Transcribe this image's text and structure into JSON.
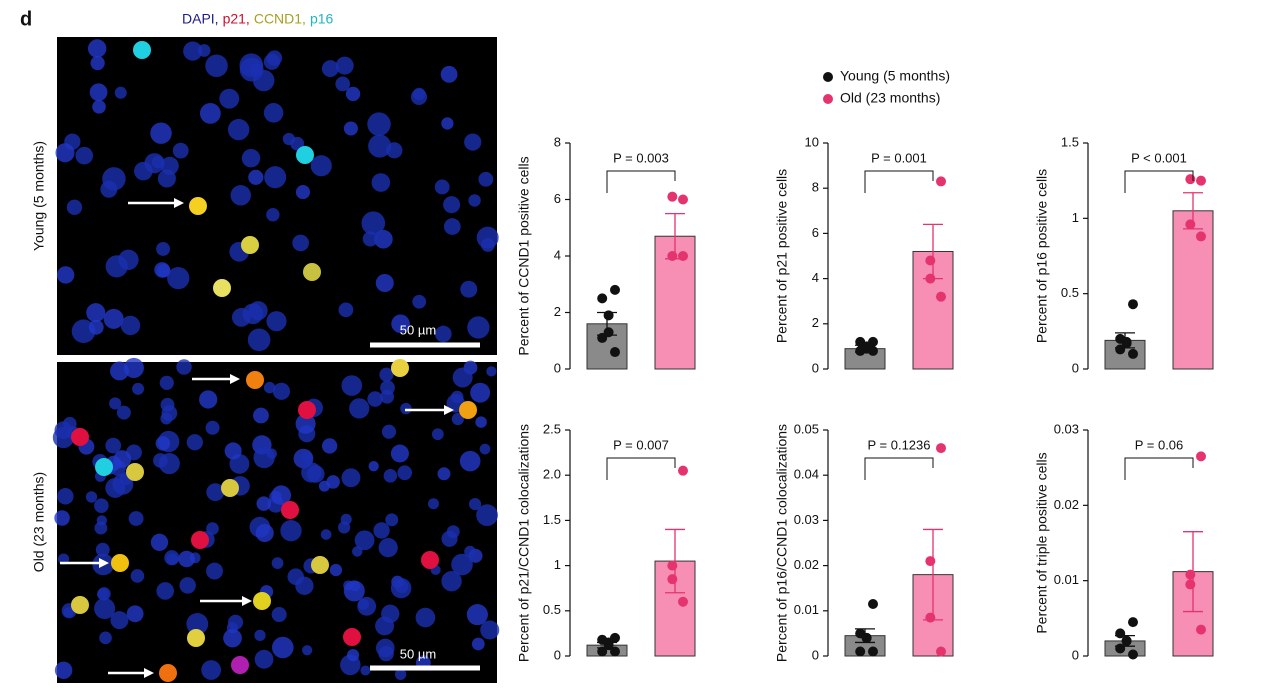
{
  "panel_label": "d",
  "stain_legend": [
    {
      "text": "DAPI,",
      "color": "#1c1c8a"
    },
    {
      "text": "p21,",
      "color": "#c8102e"
    },
    {
      "text": "CCND1,",
      "color": "#a8a020"
    },
    {
      "text": "p16",
      "color": "#1fb5c8"
    }
  ],
  "images": [
    {
      "label": "Young (5 months)",
      "scale_bar": "50 µm"
    },
    {
      "label": "Old (23 months)",
      "scale_bar": "50 µm"
    }
  ],
  "legend": {
    "series": [
      {
        "name": "Young (5 months)",
        "color": "#111111",
        "bar_color": "#8a8a8a"
      },
      {
        "name": "Old (23 months)",
        "color": "#e5336e",
        "bar_color": "#f78fb5"
      }
    ]
  },
  "chart_data": [
    {
      "type": "bar",
      "ylabel": "Percent of CCND1 positive cells",
      "annotation": "P = 0.003",
      "ylim": [
        0,
        8
      ],
      "yticks": [
        0,
        2,
        4,
        6,
        8
      ],
      "values": [
        1.6,
        4.7
      ],
      "errors": [
        0.4,
        0.8
      ],
      "points": [
        [
          2.8,
          2.5,
          1.9,
          1.3,
          1.1,
          0.6
        ],
        [
          6.0,
          6.1,
          4.0,
          4.0
        ]
      ]
    },
    {
      "type": "bar",
      "ylabel": "Percent of p21 positive cells",
      "annotation": "P = 0.001",
      "ylim": [
        0,
        10
      ],
      "yticks": [
        0,
        2,
        4,
        6,
        8,
        10
      ],
      "values": [
        0.9,
        5.2
      ],
      "errors": [
        0.15,
        1.2
      ],
      "points": [
        [
          1.2,
          1.2,
          1.0,
          0.9,
          0.8,
          0.8
        ],
        [
          8.3,
          4.8,
          4.0,
          3.2
        ]
      ]
    },
    {
      "type": "bar",
      "ylabel": "Percent of p16 positive cells",
      "annotation": "P < 0.001",
      "ylim": [
        0,
        1.5
      ],
      "yticks": [
        0,
        0.5,
        1,
        1.5
      ],
      "values": [
        0.19,
        1.05
      ],
      "errors": [
        0.05,
        0.12
      ],
      "points": [
        [
          0.43,
          0.2,
          0.18,
          0.17,
          0.13,
          0.1
        ],
        [
          1.25,
          1.26,
          0.96,
          0.88
        ]
      ]
    },
    {
      "type": "bar",
      "ylabel": "Percent of p21/CCND1 colocalizations",
      "annotation": "P = 0.007",
      "ylim": [
        0,
        2.5
      ],
      "yticks": [
        0,
        0.5,
        1,
        1.5,
        {
          "value": 2,
          "label": "2.0"
        },
        2.5
      ],
      "values": [
        0.12,
        1.05
      ],
      "errors": [
        0.03,
        0.35
      ],
      "points": [
        [
          0.2,
          0.18,
          0.15,
          0.12,
          0.05,
          0.05
        ],
        [
          2.05,
          1.0,
          0.85,
          0.6
        ]
      ]
    },
    {
      "type": "bar",
      "ylabel": "Percent of p16/CCND1 colocalizations",
      "annotation": "P = 0.1236",
      "ylim": [
        0,
        0.05
      ],
      "yticks": [
        0,
        0.01,
        0.02,
        0.03,
        0.04,
        0.05
      ],
      "values": [
        0.0045,
        0.018
      ],
      "errors": [
        0.0015,
        0.01
      ],
      "points": [
        [
          0.0115,
          0.005,
          0.004,
          0.004,
          0.001,
          0.001
        ],
        [
          0.046,
          0.021,
          0.0085,
          0.001
        ]
      ]
    },
    {
      "type": "bar",
      "ylabel": "Percent of triple positive cells",
      "annotation": "P = 0.06",
      "ylim": [
        0,
        0.03
      ],
      "yticks": [
        0,
        0.01,
        0.02,
        0.03
      ],
      "values": [
        0.002,
        0.0112
      ],
      "errors": [
        0.0007,
        0.0053
      ],
      "points": [
        [
          0.0045,
          0.003,
          0.002,
          0.002,
          0.001,
          0.0002
        ],
        [
          0.0265,
          0.0108,
          0.0095,
          0.0035
        ]
      ]
    }
  ]
}
